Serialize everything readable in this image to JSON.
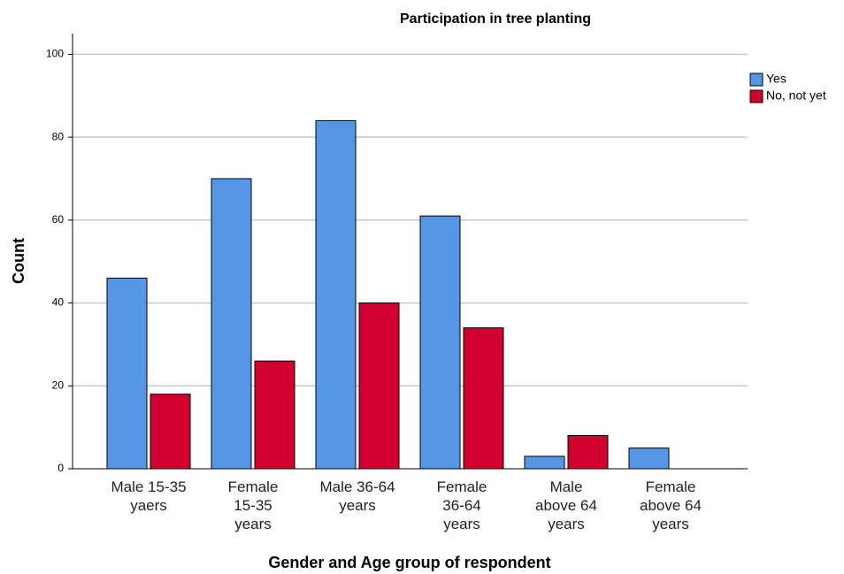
{
  "chart_data": {
    "type": "bar",
    "title": "Participation in tree planting",
    "x_label": "Gender and Age group of respondent",
    "y_label": "Count",
    "categories": [
      "Male 15-35\nyaers",
      "Female\n15-35\nyears",
      "Male 36-64\nyears",
      "Female\n36-64\nyears",
      "Male\nabove 64\nyears",
      "Female\nabove 64\nyears"
    ],
    "series": [
      {
        "name": "Yes",
        "color": "#5596e6",
        "values": [
          46,
          70,
          84,
          61,
          3,
          5
        ]
      },
      {
        "name": "No, not yet",
        "color": "#d2002e",
        "values": [
          18,
          26,
          40,
          34,
          8,
          0
        ]
      }
    ],
    "ylim": [
      0,
      105
    ],
    "yticks": [
      0,
      20,
      40,
      60,
      80,
      100
    ],
    "grid": true,
    "legend": "right"
  }
}
